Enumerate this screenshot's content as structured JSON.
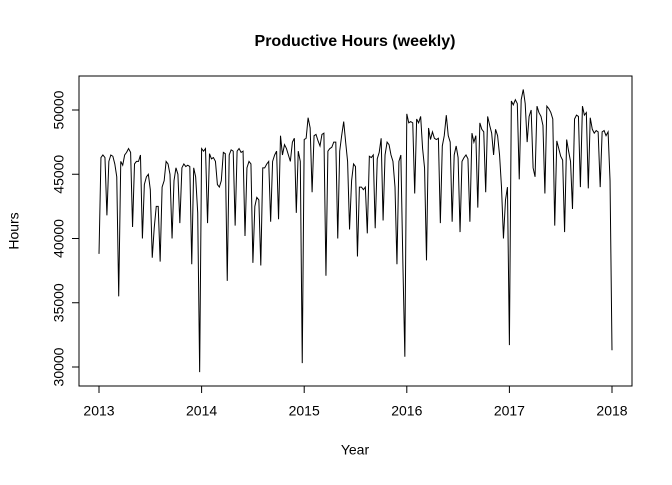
{
  "chart_data": {
    "type": "line",
    "title": "Productive Hours (weekly)",
    "x_label": "Year",
    "y_label": "Hours",
    "xlim": [
      2012.805,
      2018.195
    ],
    "ylim": [
      28521,
      52646
    ],
    "xticks": [
      2013,
      2014,
      2015,
      2016,
      2017,
      2018
    ],
    "yticks": [
      30000,
      35000,
      40000,
      45000,
      50000
    ],
    "grid": false,
    "x": [
      2013,
      2013.019,
      2013.038,
      2013.058,
      2013.077,
      2013.096,
      2013.115,
      2013.135,
      2013.154,
      2013.173,
      2013.192,
      2013.212,
      2013.231,
      2013.25,
      2013.269,
      2013.288,
      2013.308,
      2013.327,
      2013.346,
      2013.365,
      2013.385,
      2013.404,
      2013.423,
      2013.442,
      2013.462,
      2013.481,
      2013.5,
      2013.519,
      2013.538,
      2013.558,
      2013.577,
      2013.596,
      2013.615,
      2013.635,
      2013.654,
      2013.673,
      2013.692,
      2013.712,
      2013.731,
      2013.75,
      2013.769,
      2013.788,
      2013.808,
      2013.827,
      2013.846,
      2013.865,
      2013.885,
      2013.904,
      2013.923,
      2013.942,
      2013.962,
      2013.981,
      2014,
      2014.019,
      2014.038,
      2014.058,
      2014.077,
      2014.096,
      2014.115,
      2014.135,
      2014.154,
      2014.173,
      2014.192,
      2014.212,
      2014.231,
      2014.25,
      2014.269,
      2014.288,
      2014.308,
      2014.327,
      2014.346,
      2014.365,
      2014.385,
      2014.404,
      2014.423,
      2014.442,
      2014.462,
      2014.481,
      2014.5,
      2014.519,
      2014.538,
      2014.558,
      2014.577,
      2014.596,
      2014.615,
      2014.635,
      2014.654,
      2014.673,
      2014.692,
      2014.712,
      2014.731,
      2014.75,
      2014.769,
      2014.788,
      2014.808,
      2014.827,
      2014.846,
      2014.865,
      2014.885,
      2014.904,
      2014.923,
      2014.942,
      2014.962,
      2014.981,
      2015,
      2015.019,
      2015.038,
      2015.058,
      2015.077,
      2015.096,
      2015.115,
      2015.135,
      2015.154,
      2015.173,
      2015.192,
      2015.212,
      2015.231,
      2015.25,
      2015.269,
      2015.288,
      2015.308,
      2015.327,
      2015.346,
      2015.365,
      2015.385,
      2015.404,
      2015.423,
      2015.442,
      2015.462,
      2015.481,
      2015.5,
      2015.519,
      2015.538,
      2015.558,
      2015.577,
      2015.596,
      2015.615,
      2015.635,
      2015.654,
      2015.673,
      2015.692,
      2015.712,
      2015.731,
      2015.75,
      2015.769,
      2015.788,
      2015.808,
      2015.827,
      2015.846,
      2015.865,
      2015.885,
      2015.904,
      2015.923,
      2015.942,
      2015.962,
      2015.981,
      2016,
      2016.019,
      2016.038,
      2016.058,
      2016.077,
      2016.096,
      2016.115,
      2016.135,
      2016.154,
      2016.173,
      2016.192,
      2016.212,
      2016.231,
      2016.25,
      2016.269,
      2016.288,
      2016.308,
      2016.327,
      2016.346,
      2016.365,
      2016.385,
      2016.404,
      2016.423,
      2016.442,
      2016.462,
      2016.481,
      2016.5,
      2016.519,
      2016.538,
      2016.558,
      2016.577,
      2016.596,
      2016.615,
      2016.635,
      2016.654,
      2016.673,
      2016.692,
      2016.712,
      2016.731,
      2016.75,
      2016.769,
      2016.788,
      2016.808,
      2016.827,
      2016.846,
      2016.865,
      2016.885,
      2016.904,
      2016.923,
      2016.942,
      2016.962,
      2016.981,
      2017,
      2017.019,
      2017.038,
      2017.058,
      2017.077,
      2017.096,
      2017.115,
      2017.135,
      2017.154,
      2017.173,
      2017.192,
      2017.212,
      2017.231,
      2017.25,
      2017.269,
      2017.288,
      2017.308,
      2017.327,
      2017.346,
      2017.365,
      2017.385,
      2017.404,
      2017.423,
      2017.442,
      2017.462,
      2017.481,
      2017.5,
      2017.519,
      2017.538,
      2017.558,
      2017.577,
      2017.596,
      2017.615,
      2017.635,
      2017.654,
      2017.673,
      2017.692,
      2017.712,
      2017.731,
      2017.75,
      2017.769,
      2017.788,
      2017.808,
      2017.827,
      2017.846,
      2017.865,
      2017.885,
      2017.904,
      2017.923,
      2017.942,
      2017.962,
      2017.981,
      2018
    ],
    "color": "#000000",
    "values": [
      38800,
      46300,
      46500,
      46300,
      41800,
      46000,
      46500,
      46400,
      45800,
      44800,
      35500,
      46000,
      45700,
      46500,
      46700,
      47000,
      46700,
      40900,
      45800,
      46000,
      46000,
      46500,
      40000,
      44200,
      44800,
      45000,
      43800,
      38500,
      40800,
      42500,
      42500,
      38200,
      44000,
      44500,
      46000,
      45800,
      45000,
      40000,
      44500,
      45500,
      45000,
      41200,
      45500,
      45800,
      45600,
      45700,
      45600,
      38000,
      45500,
      44800,
      42000,
      29600,
      47000,
      46800,
      47000,
      41200,
      46600,
      46200,
      46300,
      46000,
      44200,
      44000,
      44500,
      46700,
      46600,
      36700,
      46500,
      46900,
      46800,
      41000,
      46800,
      47000,
      46700,
      46800,
      40200,
      45500,
      46000,
      45800,
      38100,
      42500,
      43200,
      43000,
      37900,
      45500,
      45500,
      45800,
      46000,
      41300,
      46000,
      46500,
      46800,
      41500,
      48000,
      46500,
      47300,
      47000,
      46500,
      46000,
      47500,
      47800,
      42000,
      46800,
      46000,
      30300,
      47700,
      47800,
      49400,
      48600,
      43600,
      48000,
      48100,
      47600,
      47200,
      48100,
      48200,
      37100,
      46800,
      47000,
      47100,
      47500,
      47500,
      40000,
      46800,
      48000,
      49100,
      47500,
      46000,
      40700,
      44500,
      45800,
      45600,
      38600,
      44000,
      44000,
      43800,
      44000,
      40400,
      46400,
      46300,
      46500,
      40800,
      46200,
      46700,
      47800,
      41400,
      46500,
      47500,
      47300,
      46500,
      46000,
      44000,
      38000,
      46000,
      46500,
      38000,
      30800,
      49700,
      49000,
      49100,
      49000,
      43500,
      49300,
      49000,
      49500,
      47000,
      45500,
      38300,
      48600,
      47700,
      48300,
      47800,
      47700,
      47800,
      41200,
      47200,
      48000,
      49600,
      48000,
      47500,
      41300,
      46500,
      47200,
      46300,
      40500,
      46000,
      46300,
      46500,
      46200,
      41300,
      48200,
      47500,
      48000,
      42400,
      49000,
      48500,
      48300,
      43600,
      49500,
      48800,
      48200,
      46500,
      48500,
      48000,
      46500,
      44000,
      40000,
      43000,
      44000,
      31700,
      50700,
      50400,
      50800,
      50500,
      44600,
      50800,
      51600,
      50500,
      47500,
      49500,
      50000,
      45500,
      44800,
      50300,
      49800,
      49500,
      48800,
      43500,
      50300,
      50100,
      49800,
      49300,
      41000,
      47600,
      47000,
      46400,
      46100,
      40500,
      47700,
      46800,
      46000,
      42300,
      49300,
      49600,
      49500,
      44000,
      50300,
      49600,
      49800,
      43900,
      49400,
      48500,
      48200,
      48400,
      48300,
      44000,
      48300,
      48400,
      48000,
      48300,
      44500,
      31300
    ]
  }
}
